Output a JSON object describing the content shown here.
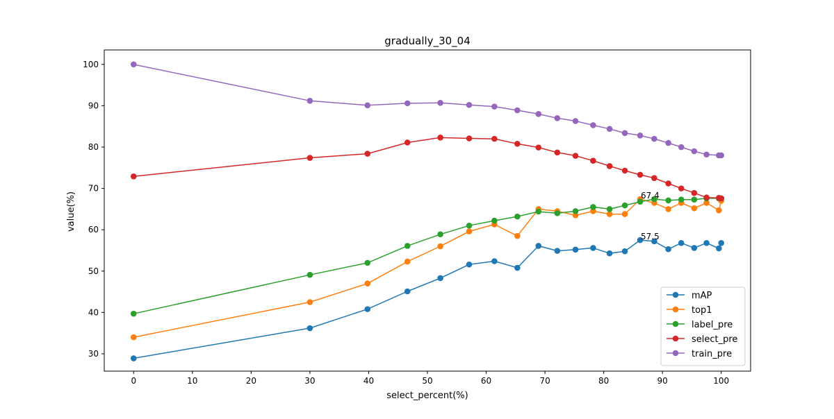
{
  "chart_data": {
    "type": "line",
    "title": "gradually_30_04",
    "xlabel": "select_percent(%)",
    "ylabel": "value(%)",
    "xlim": [
      -5,
      105
    ],
    "ylim": [
      25.8,
      103.5
    ],
    "xticks": [
      0,
      10,
      20,
      30,
      40,
      50,
      60,
      70,
      80,
      90,
      100
    ],
    "yticks": [
      30,
      40,
      50,
      60,
      70,
      80,
      90,
      100
    ],
    "grid": false,
    "legend_position": "lower right",
    "x": [
      0,
      30,
      39.8,
      46.6,
      52.2,
      57.1,
      61.4,
      65.3,
      68.9,
      72.1,
      75.2,
      78.2,
      81.0,
      83.6,
      86.2,
      88.6,
      91.0,
      93.2,
      95.4,
      97.5,
      99.6,
      100
    ],
    "series": [
      {
        "name": "mAP",
        "color": "#1f77b4",
        "values": [
          28.9,
          36.2,
          40.8,
          45.1,
          48.3,
          51.6,
          52.4,
          50.8,
          56.1,
          54.9,
          55.2,
          55.6,
          54.3,
          54.8,
          57.5,
          57.2,
          55.3,
          56.8,
          55.6,
          56.8,
          55.5,
          56.8
        ]
      },
      {
        "name": "top1",
        "color": "#ff7f0e",
        "values": [
          34.0,
          42.5,
          47.0,
          52.3,
          56.0,
          59.6,
          61.3,
          58.5,
          65.0,
          64.5,
          63.5,
          64.5,
          63.8,
          63.8,
          67.4,
          66.5,
          65.0,
          66.5,
          65.2,
          66.5,
          64.7,
          67.0
        ]
      },
      {
        "name": "label_pre",
        "color": "#2ca02c",
        "values": [
          39.7,
          49.1,
          52.0,
          56.1,
          58.9,
          61.0,
          62.2,
          63.2,
          64.4,
          64.0,
          64.5,
          65.5,
          65.0,
          65.9,
          66.8,
          67.4,
          67.1,
          67.3,
          67.3,
          67.6,
          67.6,
          67.6
        ]
      },
      {
        "name": "select_pre",
        "color": "#d62728",
        "values": [
          72.9,
          77.4,
          78.4,
          81.1,
          82.3,
          82.1,
          82.0,
          80.8,
          79.9,
          78.7,
          77.9,
          76.7,
          75.4,
          74.3,
          73.3,
          72.5,
          71.2,
          70.0,
          68.9,
          67.8,
          67.7,
          67.6
        ]
      },
      {
        "name": "train_pre",
        "color": "#9467bd",
        "values": [
          100.0,
          91.2,
          90.1,
          90.6,
          90.7,
          90.2,
          89.8,
          88.9,
          88.0,
          87.0,
          86.3,
          85.3,
          84.4,
          83.4,
          82.8,
          82.0,
          81.0,
          80.0,
          79.0,
          78.2,
          78.0,
          78.0
        ]
      }
    ],
    "annotations": [
      {
        "text": "67.4",
        "x": 86.2,
        "y": 67.4
      },
      {
        "text": "57.5",
        "x": 86.2,
        "y": 57.5
      }
    ]
  }
}
